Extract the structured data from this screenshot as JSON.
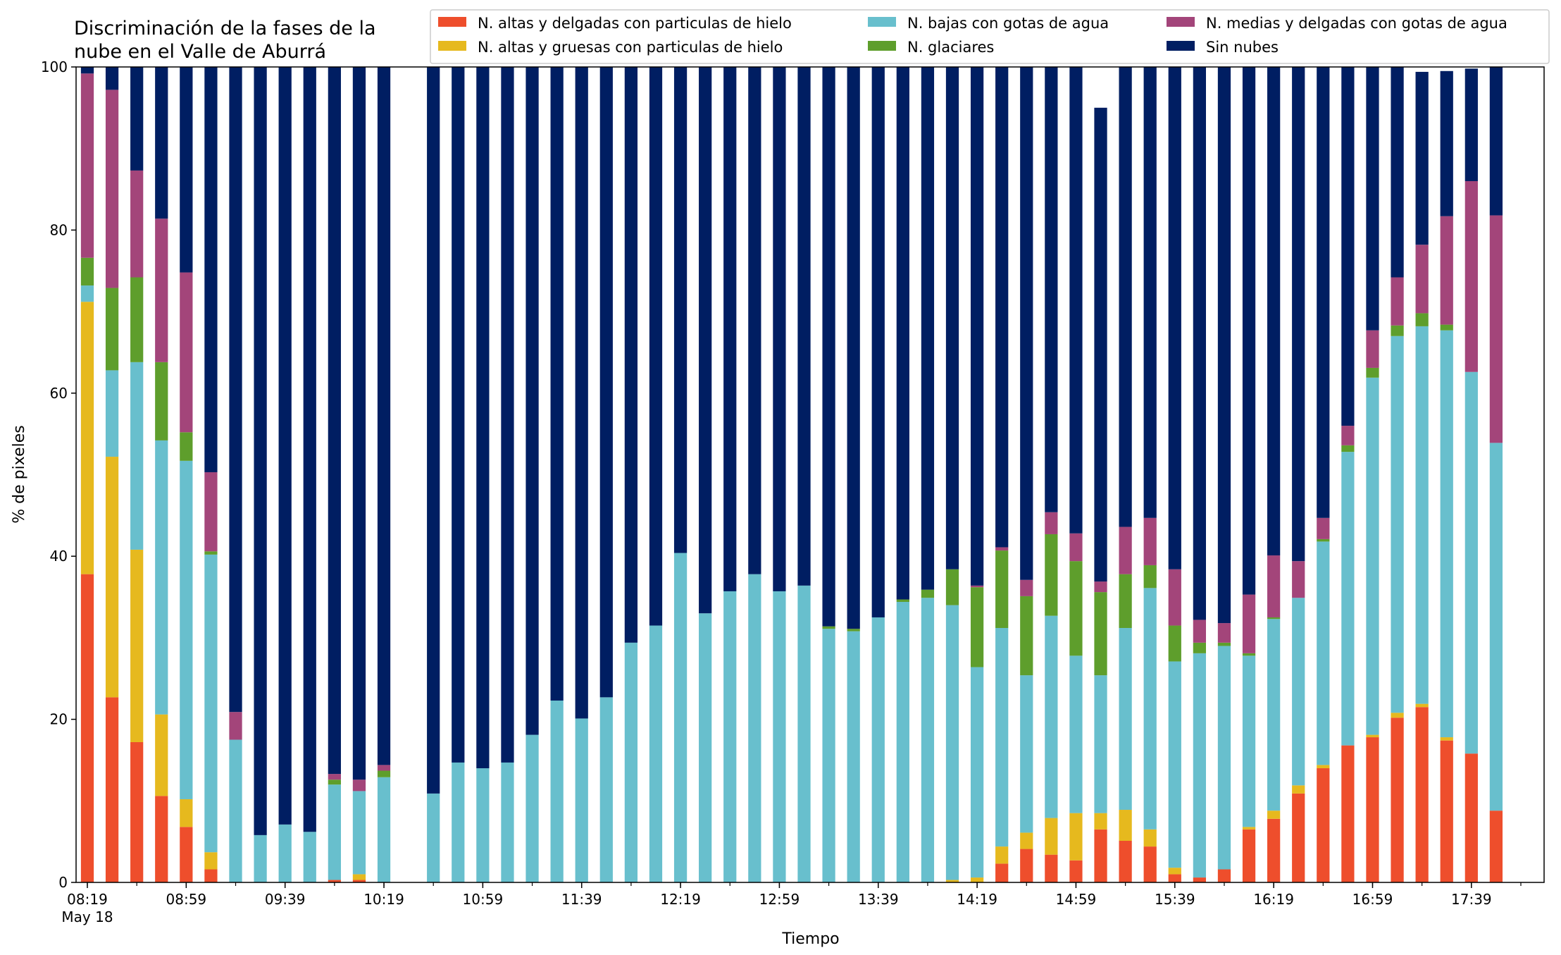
{
  "chart_data": {
    "type": "bar",
    "stacked": true,
    "title": "Discriminación de la fases de la\nnube en el Valle de Aburrá",
    "xlabel": "Tiempo",
    "ylabel": "% de pixeles",
    "ylim": [
      0,
      100
    ],
    "yticks": [
      0,
      20,
      40,
      60,
      80,
      100
    ],
    "grid": false,
    "legend_position": "top-right",
    "x_start": "08:19",
    "x_end": "17:59",
    "x_step_minutes": 10,
    "xticks": [
      {
        "label": "08:19",
        "sub": "May 18"
      },
      {
        "label": "08:59"
      },
      {
        "label": "09:39"
      },
      {
        "label": "10:19"
      },
      {
        "label": "10:59"
      },
      {
        "label": "11:39"
      },
      {
        "label": "12:19"
      },
      {
        "label": "12:59"
      },
      {
        "label": "13:39"
      },
      {
        "label": "14:19"
      },
      {
        "label": "14:59"
      },
      {
        "label": "15:39"
      },
      {
        "label": "16:19"
      },
      {
        "label": "16:59"
      },
      {
        "label": "17:39"
      }
    ],
    "times": [
      "08:19",
      "08:29",
      "08:39",
      "08:49",
      "08:59",
      "09:09",
      "09:19",
      "09:29",
      "09:39",
      "09:49",
      "09:59",
      "10:09",
      "10:19",
      "10:29",
      "10:39",
      "10:49",
      "10:59",
      "11:09",
      "11:19",
      "11:29",
      "11:39",
      "11:49",
      "11:59",
      "12:09",
      "12:19",
      "12:29",
      "12:39",
      "12:49",
      "12:59",
      "13:09",
      "13:19",
      "13:29",
      "13:39",
      "13:49",
      "13:59",
      "14:09",
      "14:19",
      "14:29",
      "14:39",
      "14:49",
      "14:59",
      "15:09",
      "15:19",
      "15:29",
      "15:39",
      "15:49",
      "15:59",
      "16:09",
      "16:19",
      "16:29",
      "16:39",
      "16:49",
      "16:59",
      "17:09",
      "17:19",
      "17:29",
      "17:39",
      "17:49",
      "17:59"
    ],
    "series": [
      {
        "name": "N. altas y delgadas con particulas de hielo",
        "color": "#ee4e2c",
        "values": [
          37.8,
          22.7,
          17.2,
          10.6,
          6.8,
          1.6,
          0,
          0,
          0,
          0,
          0.3,
          0.3,
          0,
          null,
          0,
          0,
          0,
          0,
          0,
          0,
          0,
          0,
          0,
          0,
          0,
          0,
          0,
          0,
          0,
          0,
          0,
          0,
          0,
          0,
          0,
          0,
          0,
          2.3,
          4.1,
          3.4,
          2.7,
          6.5,
          5.1,
          4.4,
          1.0,
          0.6,
          1.6,
          6.5,
          7.8,
          10.9,
          14.0,
          16.8,
          17.8,
          20.2,
          21.5,
          17.4,
          15.8,
          8.8,
          0
        ]
      },
      {
        "name": "N. altas y gruesas con particulas de hielo",
        "color": "#e6b91e",
        "values": [
          33.4,
          29.5,
          23.6,
          10.0,
          3.4,
          2.1,
          0,
          0,
          0,
          0,
          0,
          0.7,
          0,
          null,
          0,
          0,
          0,
          0,
          0,
          0,
          0,
          0,
          0,
          0,
          0,
          0,
          0,
          0,
          0,
          0,
          0,
          0,
          0,
          0,
          0,
          0.3,
          0.6,
          2.1,
          2.0,
          4.5,
          5.8,
          2.0,
          3.8,
          2.1,
          0.8,
          0,
          0,
          0.3,
          1.0,
          1.0,
          0.4,
          0,
          0.3,
          0.6,
          0.4,
          0.4,
          0,
          0,
          0
        ]
      },
      {
        "name": "N. bajas con gotas de agua",
        "color": "#68bfcd",
        "values": [
          2.0,
          10.6,
          23.0,
          33.6,
          41.5,
          36.5,
          17.5,
          5.8,
          7.1,
          6.2,
          11.7,
          10.2,
          12.9,
          null,
          10.9,
          14.7,
          14.0,
          14.7,
          18.1,
          22.3,
          20.1,
          22.7,
          29.4,
          31.5,
          40.4,
          33.0,
          35.7,
          37.8,
          35.7,
          36.4,
          31.1,
          30.8,
          32.5,
          34.4,
          34.9,
          33.7,
          25.8,
          26.8,
          19.3,
          24.8,
          19.3,
          16.9,
          22.3,
          29.6,
          25.3,
          27.5,
          27.4,
          21.0,
          23.5,
          23.0,
          27.4,
          36.0,
          43.8,
          46.2,
          46.3,
          49.9,
          46.8,
          45.1,
          0
        ]
      },
      {
        "name": "N. glaciares",
        "color": "#5e9e2c",
        "values": [
          3.4,
          10.1,
          10.4,
          9.6,
          3.5,
          0.4,
          0,
          0,
          0,
          0,
          0.6,
          0,
          0.8,
          null,
          0,
          0,
          0,
          0,
          0,
          0,
          0,
          0,
          0,
          0,
          0,
          0,
          0,
          0,
          0,
          0,
          0.3,
          0.3,
          0,
          0.3,
          1.0,
          4.4,
          9.8,
          9.5,
          9.7,
          10.0,
          11.6,
          10.2,
          6.6,
          2.8,
          4.4,
          1.3,
          0.4,
          0.3,
          0.2,
          0,
          0.3,
          0.8,
          1.2,
          1.3,
          1.6,
          0.7,
          0,
          0,
          0
        ]
      },
      {
        "name": "N. medias y delgadas con gotas de agua",
        "color": "#a3457a",
        "values": [
          22.6,
          24.3,
          13.1,
          17.6,
          19.6,
          9.7,
          3.4,
          0,
          0,
          0,
          0.7,
          1.4,
          0.7,
          null,
          0,
          0,
          0,
          0,
          0,
          0,
          0,
          0,
          0,
          0,
          0,
          0,
          0,
          0,
          0,
          0,
          0,
          0,
          0,
          0,
          0,
          0,
          0.2,
          0.4,
          2.0,
          2.7,
          3.4,
          1.3,
          5.8,
          5.8,
          6.9,
          2.8,
          2.4,
          7.2,
          7.6,
          4.5,
          2.6,
          2.4,
          4.6,
          5.9,
          8.4,
          13.3,
          23.4,
          27.9,
          0
        ]
      },
      {
        "name": "Sin nubes",
        "color": "#001e62",
        "values": [
          0.8,
          2.8,
          12.7,
          18.6,
          25.2,
          49.7,
          79.1,
          94.2,
          92.9,
          93.8,
          86.7,
          87.4,
          85.6,
          null,
          89.1,
          85.3,
          86.0,
          85.3,
          81.9,
          77.7,
          79.9,
          77.3,
          70.6,
          68.5,
          59.6,
          67.0,
          64.3,
          62.2,
          64.3,
          63.6,
          68.6,
          68.9,
          67.5,
          65.3,
          64.1,
          61.6,
          63.6,
          58.9,
          62.9,
          54.6,
          57.2,
          58.1,
          56.4,
          55.3,
          61.6,
          67.8,
          68.2,
          64.7,
          59.9,
          60.6,
          55.3,
          44.0,
          32.9,
          25.8,
          21.2,
          17.8,
          13.8,
          18.2,
          0
        ]
      }
    ]
  }
}
